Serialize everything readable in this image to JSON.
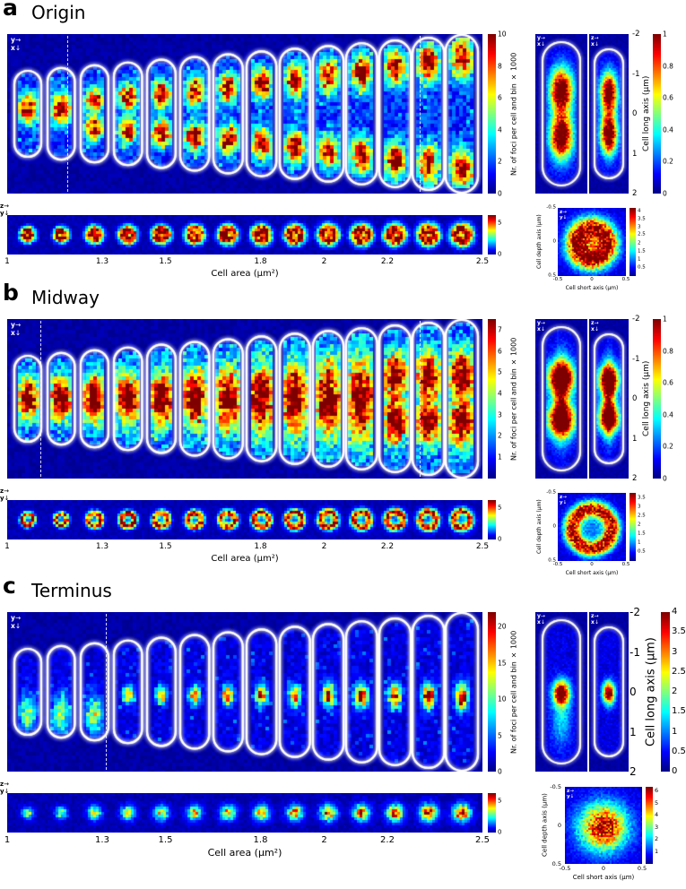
{
  "panels": [
    {
      "letter": "a",
      "title": "Origin",
      "main": {
        "colorbar_label": "Nr. of foci per cell and bin × 1000",
        "colorbar_ticks": [
          {
            "label": "10",
            "pos": 0
          },
          {
            "label": "8",
            "pos": 0.2
          },
          {
            "label": "6",
            "pos": 0.4
          },
          {
            "label": "4",
            "pos": 0.6
          },
          {
            "label": "2",
            "pos": 0.8
          },
          {
            "label": "0",
            "pos": 1
          }
        ]
      },
      "strip": {
        "colorbar_ticks": [
          {
            "label": "5",
            "pos": 0.2
          },
          {
            "label": "0",
            "pos": 1
          }
        ]
      },
      "xaxis": {
        "label": "Cell area (µm²)",
        "ticks": [
          {
            "label": "1",
            "pos": 0
          },
          {
            "label": "1.3",
            "pos": 0.2
          },
          {
            "label": "1.5",
            "pos": 0.333
          },
          {
            "label": "1.8",
            "pos": 0.533
          },
          {
            "label": "2",
            "pos": 0.667
          },
          {
            "label": "2.2",
            "pos": 0.8
          },
          {
            "label": "2.5",
            "pos": 1
          }
        ]
      },
      "side": {
        "long_axis_label": "Cell long axis (µm)",
        "long_ticks": [
          {
            "label": "-2",
            "pos": 0
          },
          {
            "label": "-1",
            "pos": 0.25
          },
          {
            "label": "0",
            "pos": 0.5
          },
          {
            "label": "1",
            "pos": 0.75
          },
          {
            "label": "2",
            "pos": 1
          }
        ],
        "colorbar_ticks": [
          {
            "label": "1",
            "pos": 0
          },
          {
            "label": "0.8",
            "pos": 0.2
          },
          {
            "label": "0.6",
            "pos": 0.4
          },
          {
            "label": "0.4",
            "pos": 0.6
          },
          {
            "label": "0.2",
            "pos": 0.8
          },
          {
            "label": "0",
            "pos": 1
          }
        ]
      },
      "small": {
        "xlabel": "Cell short axis (µm)",
        "ylabel": "Cell depth axis (µm)",
        "xticks": [
          {
            "label": "-0.5",
            "pos": 0
          },
          {
            "label": "0",
            "pos": 0.5
          },
          {
            "label": "0.5",
            "pos": 1
          }
        ],
        "yticks": [
          {
            "label": "-0.5",
            "pos": 0
          },
          {
            "label": "0",
            "pos": 0.5
          },
          {
            "label": "0.5",
            "pos": 1
          }
        ],
        "colorbar_ticks": [
          {
            "label": "4",
            "pos": 0.05
          },
          {
            "label": "3.5",
            "pos": 0.17
          },
          {
            "label": "3",
            "pos": 0.29
          },
          {
            "label": "2.5",
            "pos": 0.4
          },
          {
            "label": "2",
            "pos": 0.52
          },
          {
            "label": "1.5",
            "pos": 0.64
          },
          {
            "label": "1",
            "pos": 0.76
          },
          {
            "label": "0.5",
            "pos": 0.88
          }
        ]
      },
      "icons": {
        "main": {
          "h": "y",
          "v": "x"
        },
        "strip": {
          "h": "z",
          "v": "y"
        },
        "side_left": {
          "h": "y",
          "v": "x"
        },
        "side_right": {
          "h": "z",
          "v": "x"
        },
        "small": {
          "h": "z",
          "v": "y"
        }
      },
      "render": {
        "pattern": "origin",
        "n_cells": 14,
        "dashed": [
          0.126,
          0.868
        ]
      }
    },
    {
      "letter": "b",
      "title": "Midway",
      "main": {
        "colorbar_label": "Nr. of foci per cell and bin × 1000",
        "colorbar_ticks": [
          {
            "label": "7",
            "pos": 0.067
          },
          {
            "label": "6",
            "pos": 0.2
          },
          {
            "label": "5",
            "pos": 0.333
          },
          {
            "label": "4",
            "pos": 0.467
          },
          {
            "label": "3",
            "pos": 0.6
          },
          {
            "label": "2",
            "pos": 0.733
          },
          {
            "label": "1",
            "pos": 0.867
          }
        ]
      },
      "strip": {
        "colorbar_ticks": [
          {
            "label": "5",
            "pos": 0.2
          },
          {
            "label": "0",
            "pos": 1
          }
        ]
      },
      "xaxis": {
        "label": "Cell area (µm²)",
        "ticks": [
          {
            "label": "1",
            "pos": 0
          },
          {
            "label": "1.3",
            "pos": 0.2
          },
          {
            "label": "1.5",
            "pos": 0.333
          },
          {
            "label": "1.8",
            "pos": 0.533
          },
          {
            "label": "2",
            "pos": 0.667
          },
          {
            "label": "2.2",
            "pos": 0.8
          },
          {
            "label": "2.5",
            "pos": 1
          }
        ]
      },
      "side": {
        "long_axis_label": "Cell long axis (µm)",
        "long_ticks": [
          {
            "label": "-2",
            "pos": 0
          },
          {
            "label": "-1",
            "pos": 0.25
          },
          {
            "label": "0",
            "pos": 0.5
          },
          {
            "label": "1",
            "pos": 0.75
          },
          {
            "label": "2",
            "pos": 1
          }
        ],
        "colorbar_ticks": [
          {
            "label": "1",
            "pos": 0
          },
          {
            "label": "0.8",
            "pos": 0.2
          },
          {
            "label": "0.6",
            "pos": 0.4
          },
          {
            "label": "0.4",
            "pos": 0.6
          },
          {
            "label": "0.2",
            "pos": 0.8
          },
          {
            "label": "0",
            "pos": 1
          }
        ]
      },
      "small": {
        "xlabel": "Cell short axis (µm)",
        "ylabel": "Cell depth axis (µm)",
        "xticks": [
          {
            "label": "-0.5",
            "pos": 0
          },
          {
            "label": "0",
            "pos": 0.5
          },
          {
            "label": "0.5",
            "pos": 1
          }
        ],
        "yticks": [
          {
            "label": "-0.5",
            "pos": 0
          },
          {
            "label": "0",
            "pos": 0.5
          },
          {
            "label": "0.5",
            "pos": 1
          }
        ],
        "colorbar_ticks": [
          {
            "label": "3.5",
            "pos": 0.08
          },
          {
            "label": "3",
            "pos": 0.21
          },
          {
            "label": "2.5",
            "pos": 0.34
          },
          {
            "label": "2",
            "pos": 0.47
          },
          {
            "label": "1.5",
            "pos": 0.61
          },
          {
            "label": "1",
            "pos": 0.74
          },
          {
            "label": "0.5",
            "pos": 0.87
          }
        ]
      },
      "icons": {
        "main": {
          "h": "y",
          "v": "x"
        },
        "strip": {
          "h": "z",
          "v": "y"
        },
        "side_left": {
          "h": "y",
          "v": "x"
        },
        "side_right": {
          "h": "z",
          "v": "x"
        },
        "small": {
          "h": "z",
          "v": "y"
        }
      },
      "render": {
        "pattern": "midway",
        "n_cells": 14,
        "dashed": [
          0.07,
          0.868
        ]
      }
    },
    {
      "letter": "c",
      "title": "Terminus",
      "main": {
        "colorbar_label": "Nr. of foci per cell and bin × 1000",
        "colorbar_ticks": [
          {
            "label": "20",
            "pos": 0.09
          },
          {
            "label": "15",
            "pos": 0.318
          },
          {
            "label": "10",
            "pos": 0.545
          },
          {
            "label": "5",
            "pos": 0.773
          },
          {
            "label": "0",
            "pos": 1
          }
        ]
      },
      "strip": {
        "colorbar_ticks": [
          {
            "label": "5",
            "pos": 0.2
          },
          {
            "label": "0",
            "pos": 1
          }
        ]
      },
      "xaxis": {
        "label": "Cell area (µm²)",
        "ticks": [
          {
            "label": "1",
            "pos": 0
          },
          {
            "label": "1.3",
            "pos": 0.2
          },
          {
            "label": "1.5",
            "pos": 0.333
          },
          {
            "label": "1.8",
            "pos": 0.533
          },
          {
            "label": "2",
            "pos": 0.667
          },
          {
            "label": "2.2",
            "pos": 0.8
          },
          {
            "label": "2.5",
            "pos": 1
          }
        ]
      },
      "side": {
        "long_axis_label": "Cell long axis (µm)",
        "long_ticks": [
          {
            "label": "-2",
            "pos": 0
          },
          {
            "label": "-1",
            "pos": 0.25
          },
          {
            "label": "0",
            "pos": 0.5
          },
          {
            "label": "1",
            "pos": 0.75
          },
          {
            "label": "2",
            "pos": 1
          }
        ],
        "colorbar_ticks": [
          {
            "label": "4",
            "pos": 0
          },
          {
            "label": "3.5",
            "pos": 0.125
          },
          {
            "label": "3",
            "pos": 0.25
          },
          {
            "label": "2.5",
            "pos": 0.375
          },
          {
            "label": "2",
            "pos": 0.5
          },
          {
            "label": "1.5",
            "pos": 0.625
          },
          {
            "label": "1",
            "pos": 0.75
          },
          {
            "label": "0.5",
            "pos": 0.875
          },
          {
            "label": "0",
            "pos": 1
          }
        ]
      },
      "small": {
        "xlabel": "Cell short axis (µm)",
        "ylabel": "Cell depth axis (µm)",
        "xticks": [
          {
            "label": "-0.5",
            "pos": 0
          },
          {
            "label": "0",
            "pos": 0.5
          },
          {
            "label": "0.5",
            "pos": 1
          }
        ],
        "yticks": [
          {
            "label": "-0.5",
            "pos": 0
          },
          {
            "label": "0",
            "pos": 0.5
          },
          {
            "label": "0.5",
            "pos": 1
          }
        ],
        "colorbar_ticks": [
          {
            "label": "6",
            "pos": 0.05
          },
          {
            "label": "5",
            "pos": 0.21
          },
          {
            "label": "4",
            "pos": 0.36
          },
          {
            "label": "3",
            "pos": 0.52
          },
          {
            "label": "2",
            "pos": 0.68
          },
          {
            "label": "1",
            "pos": 0.84
          }
        ]
      },
      "icons": {
        "main": {
          "h": "y",
          "v": "x"
        },
        "strip": {
          "h": "z",
          "v": "y"
        },
        "side_left": {
          "h": "y",
          "v": "x"
        },
        "side_right": {
          "h": "z",
          "v": "x"
        },
        "small": {
          "h": "z",
          "v": "y"
        }
      },
      "render": {
        "pattern": "terminus",
        "n_cells": 14,
        "dashed": [
          0.208
        ]
      }
    }
  ],
  "chart_data": [
    {
      "type": "heatmap",
      "panel": "a",
      "locus": "Origin",
      "description": "2D histograms of Origin focus localization in cells sorted by cell area; foci occupy quarter positions along the long axis, duplicating from one to two foci as cells grow.",
      "x_axis": {
        "label": "Cell area (µm²)",
        "range": [
          1,
          2.5
        ],
        "ticks": [
          1,
          1.3,
          1.5,
          1.8,
          2,
          2.2,
          2.5
        ]
      },
      "colorbar": {
        "label": "Nr. of foci per cell and bin × 1000",
        "range": [
          0,
          10
        ]
      },
      "side_views": {
        "long_axis": {
          "label": "Cell long axis (µm)",
          "range": [
            -2,
            2
          ]
        },
        "colorbar_range": [
          0,
          1
        ]
      },
      "cross_section": {
        "short_axis": {
          "label": "Cell short axis (µm)",
          "range": [
            -0.5,
            0.5
          ]
        },
        "depth_axis": {
          "label": "Cell depth axis (µm)",
          "range": [
            -0.5,
            0.5
          ]
        },
        "colorbar_range": [
          0.5,
          4
        ],
        "shape": "filled ring"
      }
    },
    {
      "type": "heatmap",
      "panel": "b",
      "locus": "Midway",
      "description": "2D histograms of Midway locus localization; foci form a broad band around midcell, splitting toward quarter positions in the largest cells.",
      "x_axis": {
        "label": "Cell area (µm²)",
        "range": [
          1,
          2.5
        ],
        "ticks": [
          1,
          1.3,
          1.5,
          1.8,
          2,
          2.2,
          2.5
        ]
      },
      "colorbar": {
        "label": "Nr. of foci per cell and bin × 1000",
        "range": [
          0,
          7.5
        ]
      },
      "side_views": {
        "long_axis": {
          "label": "Cell long axis (µm)",
          "range": [
            -2,
            2
          ]
        },
        "colorbar_range": [
          0,
          1
        ]
      },
      "cross_section": {
        "short_axis": {
          "label": "Cell short axis (µm)",
          "range": [
            -0.5,
            0.5
          ]
        },
        "depth_axis": {
          "label": "Cell depth axis (µm)",
          "range": [
            -0.5,
            0.5
          ]
        },
        "colorbar_range": [
          0.5,
          3.5
        ],
        "shape": "hollow ring near membrane"
      }
    },
    {
      "type": "heatmap",
      "panel": "c",
      "locus": "Terminus",
      "description": "2D histograms of Terminus focus localization; a single compact focus sits at midcell (near the new pole in the smallest cells), with low counts elsewhere.",
      "x_axis": {
        "label": "Cell area (µm²)",
        "range": [
          1,
          2.5
        ],
        "ticks": [
          1,
          1.3,
          1.5,
          1.8,
          2,
          2.2,
          2.5
        ]
      },
      "colorbar": {
        "label": "Nr. of foci per cell and bin × 1000",
        "range": [
          0,
          22
        ]
      },
      "side_views": {
        "long_axis": {
          "label": "Cell long axis (µm)",
          "range": [
            -2,
            2
          ]
        },
        "colorbar_range": [
          0,
          4
        ]
      },
      "cross_section": {
        "short_axis": {
          "label": "Cell short axis (µm)",
          "range": [
            -0.5,
            0.5
          ]
        },
        "depth_axis": {
          "label": "Cell depth axis (µm)",
          "range": [
            -0.5,
            0.5
          ]
        },
        "colorbar_range": [
          1,
          6
        ],
        "shape": "filled central spot"
      }
    }
  ]
}
